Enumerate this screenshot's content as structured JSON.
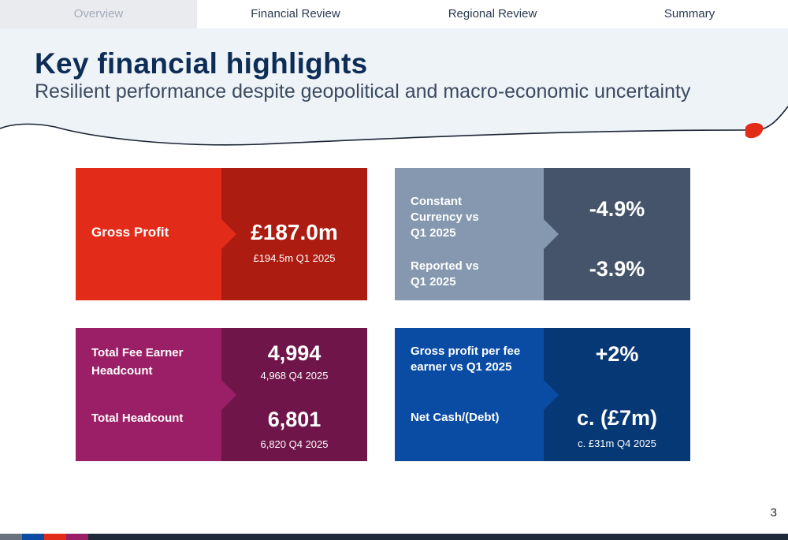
{
  "nav": {
    "tabs": [
      {
        "label": "Overview",
        "active": true
      },
      {
        "label": "Financial Review",
        "active": false
      },
      {
        "label": "Regional Review",
        "active": false
      },
      {
        "label": "Summary",
        "active": false
      }
    ]
  },
  "header": {
    "title": "Key financial highlights",
    "subtitle": "Resilient performance despite geopolitical and macro-economic uncertainty"
  },
  "cards": {
    "gross_profit": {
      "label": "Gross Profit",
      "value": "£187.0m",
      "comparison": "£194.5m Q1 2025"
    },
    "growth": {
      "constant_label": "Constant Currency vs Q1 2025",
      "constant_value": "-4.9%",
      "reported_label": "Reported vs Q1 2025",
      "reported_value": "-3.9%"
    },
    "headcount": {
      "fee_label": "Total Fee Earner Headcount",
      "fee_value": "4,994",
      "fee_comparison": "4,968 Q4 2025",
      "total_label": "Total Headcount",
      "total_value": "6,801",
      "total_comparison": "6,820 Q4 2025"
    },
    "cash": {
      "gp_fee_label": "Gross profit per fee earner vs Q1 2025",
      "gp_fee_value": "+2%",
      "net_cash_label": "Net Cash/(Debt)",
      "net_cash_value": "c. (£7m)",
      "net_cash_comparison": "c. £31m Q4 2025"
    }
  },
  "page_number": "3",
  "colors": {
    "navy": "#0d2d56",
    "red": "#e22b19",
    "dark_red": "#ad1c11",
    "slate": "#8598b0",
    "dark_slate": "#45546b",
    "magenta": "#9b1f66",
    "dark_magenta": "#6f1549",
    "blue": "#0a4ca4",
    "dark_blue": "#073876"
  }
}
